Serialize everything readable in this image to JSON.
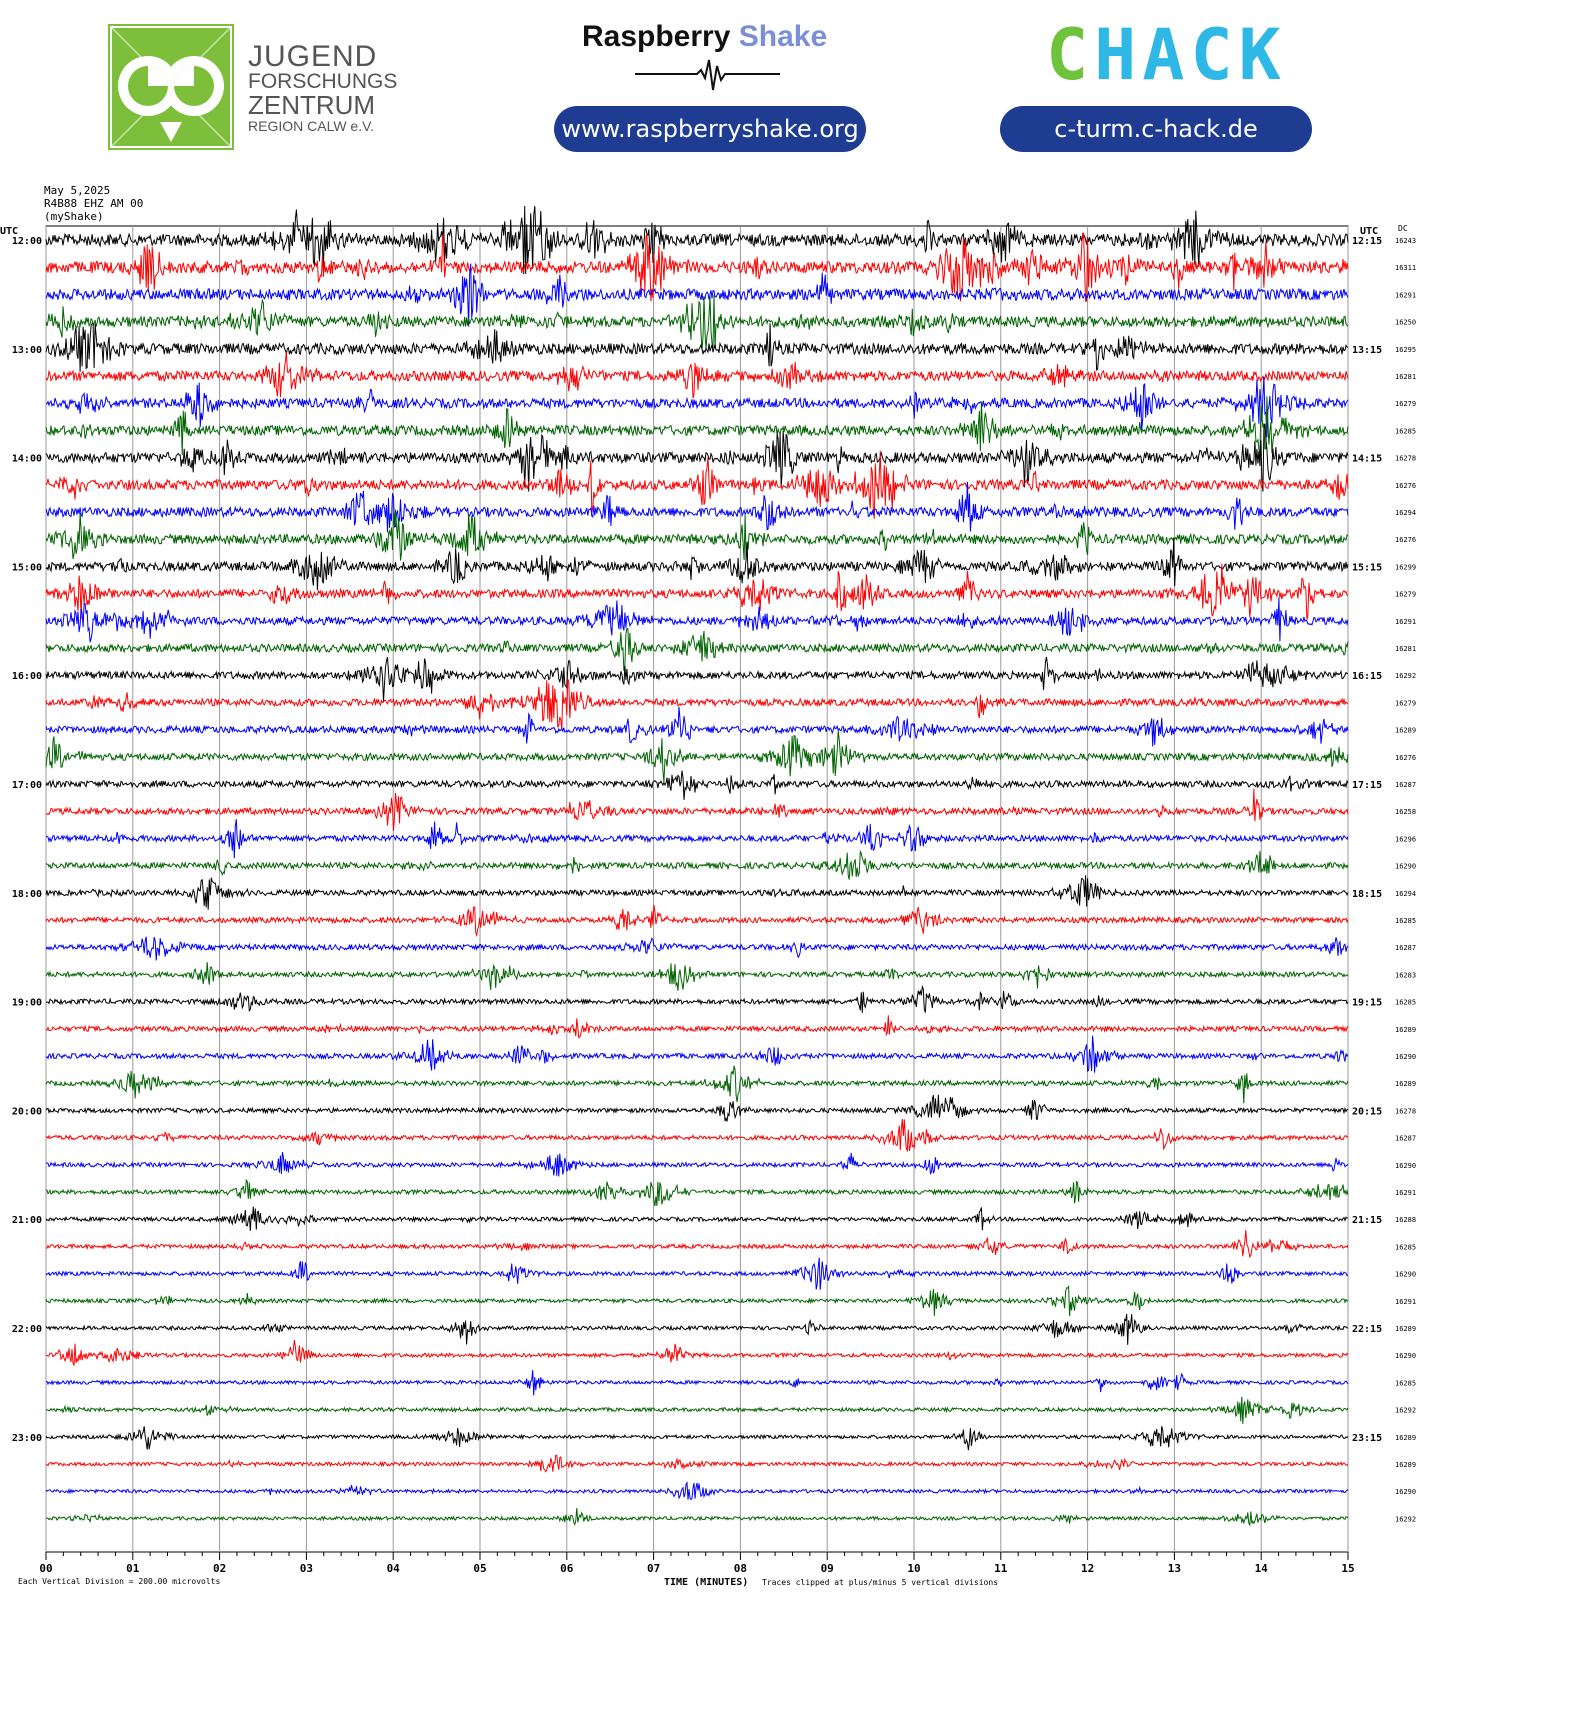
{
  "header": {
    "jfz": {
      "line1": "JUGEND",
      "line2": "FORSCHUNGS",
      "line3": "ZENTRUM",
      "line4": "REGION CALW e.V.",
      "color": "#7dbf3a"
    },
    "rs": {
      "brand1": "Raspberry",
      "brand2": "Shake",
      "url": "www.raspberryshake.org",
      "brand2_color": "#7b8fd6"
    },
    "chack": {
      "c": "C",
      "hack": "HACK",
      "url": "c-turm.c-hack.de",
      "c_color": "#6fc33a",
      "hack_color": "#2fb8e6"
    },
    "pill_color": "#1f3c93"
  },
  "meta": {
    "date": "May 5,2025",
    "station": "R4B88 EHZ AM 00",
    "source": "(myShake)",
    "utc_left": "UTC",
    "utc_right": "UTC",
    "dc_label": "DC"
  },
  "footer": {
    "division": "Each Vertical Division =  200.00 microvolts",
    "xlabel": "TIME (MINUTES)",
    "clip_note": "Traces clipped at plus/minus 5 vertical divisions"
  },
  "chart_data": {
    "type": "line",
    "title": "May 5,2025",
    "xlabel": "TIME (MINUTES)",
    "x_ticks": [
      "00",
      "01",
      "02",
      "03",
      "04",
      "05",
      "06",
      "07",
      "08",
      "09",
      "10",
      "11",
      "12",
      "13",
      "14",
      "15"
    ],
    "xlim": [
      0,
      15
    ],
    "colors": [
      "#000000",
      "#ff0000",
      "#0000ff",
      "#006400"
    ],
    "hour_labels_left": [
      "12:00",
      "13:00",
      "14:00",
      "15:00",
      "16:00",
      "17:00",
      "18:00",
      "19:00",
      "20:00",
      "21:00",
      "22:00",
      "23:00"
    ],
    "hour_labels_right": [
      "12:15",
      "13:15",
      "14:15",
      "15:15",
      "16:15",
      "17:15",
      "18:15",
      "19:15",
      "20:15",
      "21:15",
      "22:15",
      "23:15"
    ],
    "dc_offsets": [
      16243,
      16311,
      16291,
      16250,
      16295,
      16281,
      16279,
      16285,
      16278,
      16276,
      16294,
      16276,
      16299,
      16279,
      16291,
      16281,
      16292,
      16279,
      16289,
      16276,
      16287,
      16258,
      16296,
      16290,
      16294,
      16285,
      16287,
      16283,
      16285,
      16289,
      16290,
      16289,
      16278,
      16287,
      16290,
      16291,
      16288,
      16285,
      16290,
      16291,
      16289,
      16290,
      16285,
      16292,
      16289,
      16289,
      16290,
      16292
    ],
    "activity": [
      1.0,
      1.0,
      0.9,
      0.85,
      0.9,
      0.8,
      0.75,
      0.8,
      0.85,
      0.8,
      0.75,
      0.75,
      0.7,
      0.65,
      0.6,
      0.6,
      0.55,
      0.5,
      0.5,
      0.5,
      0.45,
      0.45,
      0.4,
      0.4,
      0.35,
      0.35,
      0.35,
      0.3,
      0.3,
      0.3,
      0.3,
      0.28,
      0.25,
      0.25,
      0.22,
      0.22,
      0.2,
      0.2,
      0.2,
      0.18,
      0.18,
      0.18,
      0.16,
      0.16,
      0.15,
      0.15,
      0.14,
      0.14
    ]
  }
}
